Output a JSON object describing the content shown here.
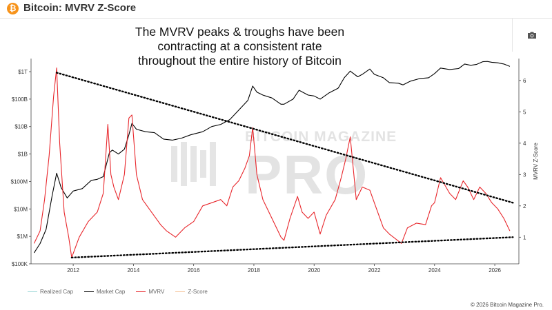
{
  "header": {
    "title": "Bitcoin: MVRV Z-Score",
    "logo_glyph": "₿"
  },
  "annotation": {
    "lines": [
      "The MVRV peaks & troughs have been",
      "contracting at a consistent rate",
      "throughout the entire history of Bitcoin"
    ]
  },
  "watermark": {
    "top": "BITCOIN MAGAZINE",
    "bottom": "PRO"
  },
  "legend": [
    {
      "label": "Realized Cap",
      "color": "#9fd9d9"
    },
    {
      "label": "Market Cap",
      "color": "#000000"
    },
    {
      "label": "MVRV",
      "color": "#e8262b"
    },
    {
      "label": "Z-Score",
      "color": "#f5c49a"
    }
  ],
  "copyright": "© 2026 Bitcoin Magazine Pro.",
  "icons": {
    "camera": "camera-icon",
    "logo": "bitcoin-logo-icon"
  },
  "chart_data": {
    "type": "line",
    "xlim": [
      2010.6,
      2026.8
    ],
    "x_ticks": [
      {
        "value": 2012,
        "label": "2012"
      },
      {
        "value": 2014,
        "label": "2014"
      },
      {
        "value": 2016,
        "label": "2016"
      },
      {
        "value": 2018,
        "label": "2018"
      },
      {
        "value": 2020,
        "label": "2020"
      },
      {
        "value": 2022,
        "label": "2022"
      },
      {
        "value": 2024,
        "label": "2024"
      },
      {
        "value": 2026,
        "label": "2026"
      }
    ],
    "left_axis": {
      "scale": "log",
      "unit": "USD",
      "range": [
        100000,
        3000000000000
      ],
      "ticks": [
        {
          "value": 100000,
          "label": "$100K"
        },
        {
          "value": 1000000,
          "label": "$1M"
        },
        {
          "value": 10000000,
          "label": "$10M"
        },
        {
          "value": 100000000,
          "label": "$100M"
        },
        {
          "value": 1000000000,
          "label": "$1B"
        },
        {
          "value": 10000000000,
          "label": "$10B"
        },
        {
          "value": 100000000000,
          "label": "$100B"
        },
        {
          "value": 1000000000000,
          "label": "$1T"
        }
      ]
    },
    "right_axis": {
      "label": "MVRV Z-Score",
      "range": [
        0.15,
        6.7
      ],
      "ticks": [
        {
          "value": 1,
          "label": "1"
        },
        {
          "value": 2,
          "label": "2"
        },
        {
          "value": 3,
          "label": "3"
        },
        {
          "value": 4,
          "label": "4"
        },
        {
          "value": 5,
          "label": "5"
        },
        {
          "value": 6,
          "label": "6"
        }
      ]
    },
    "series": [
      {
        "name": "Market Cap",
        "axis": "left",
        "color": "#000000",
        "x": [
          2010.7,
          2010.9,
          2011.1,
          2011.3,
          2011.45,
          2011.6,
          2011.8,
          2012.0,
          2012.3,
          2012.6,
          2012.8,
          2013.0,
          2013.2,
          2013.3,
          2013.5,
          2013.7,
          2013.85,
          2013.95,
          2014.1,
          2014.4,
          2014.7,
          2015.0,
          2015.3,
          2015.6,
          2015.9,
          2016.3,
          2016.6,
          2016.9,
          2017.2,
          2017.5,
          2017.8,
          2017.96,
          2018.1,
          2018.3,
          2018.6,
          2018.9,
          2019.0,
          2019.3,
          2019.5,
          2019.8,
          2020.0,
          2020.2,
          2020.5,
          2020.8,
          2021.0,
          2021.2,
          2021.45,
          2021.6,
          2021.85,
          2022.0,
          2022.3,
          2022.5,
          2022.8,
          2022.95,
          2023.2,
          2023.5,
          2023.8,
          2024.0,
          2024.2,
          2024.5,
          2024.8,
          2025.0,
          2025.2,
          2025.4,
          2025.6,
          2025.75,
          2025.9,
          2026.1,
          2026.3,
          2026.5
        ],
        "values": [
          250000,
          550000,
          1800000,
          30000000,
          200000000,
          60000000,
          25000000,
          45000000,
          55000000,
          110000000,
          120000000,
          150000000,
          1100000000,
          1400000000,
          1000000000,
          1500000000,
          5000000000,
          13000000000,
          8000000000,
          6500000000,
          6000000000,
          3500000000,
          3200000000,
          3800000000,
          5000000000,
          6500000000,
          10000000000,
          12000000000,
          18000000000,
          40000000000,
          90000000000,
          300000000000,
          180000000000,
          140000000000,
          110000000000,
          65000000000,
          65000000000,
          100000000000,
          210000000000,
          140000000000,
          130000000000,
          100000000000,
          170000000000,
          250000000000,
          600000000000,
          1050000000000,
          650000000000,
          800000000000,
          1250000000000,
          800000000000,
          600000000000,
          400000000000,
          380000000000,
          330000000000,
          450000000000,
          560000000000,
          600000000000,
          850000000000,
          1350000000000,
          1200000000000,
          1300000000000,
          1900000000000,
          1700000000000,
          1850000000000,
          2300000000000,
          2350000000000,
          2200000000000,
          2100000000000,
          1900000000000,
          1550000000000
        ]
      },
      {
        "name": "MVRV",
        "axis": "right",
        "color": "#e8262b",
        "x": [
          2010.7,
          2010.9,
          2011.05,
          2011.2,
          2011.35,
          2011.45,
          2011.55,
          2011.7,
          2011.85,
          2011.95,
          2012.2,
          2012.5,
          2012.8,
          2013.0,
          2013.15,
          2013.25,
          2013.35,
          2013.5,
          2013.7,
          2013.85,
          2013.95,
          2014.1,
          2014.3,
          2014.6,
          2014.9,
          2015.1,
          2015.4,
          2015.7,
          2016.0,
          2016.3,
          2016.6,
          2016.9,
          2017.1,
          2017.3,
          2017.5,
          2017.7,
          2017.85,
          2017.96,
          2018.1,
          2018.3,
          2018.6,
          2018.9,
          2019.0,
          2019.2,
          2019.45,
          2019.6,
          2019.8,
          2020.0,
          2020.2,
          2020.4,
          2020.7,
          2020.9,
          2021.05,
          2021.2,
          2021.4,
          2021.6,
          2021.85,
          2022.0,
          2022.3,
          2022.5,
          2022.7,
          2022.9,
          2023.1,
          2023.4,
          2023.7,
          2023.9,
          2024.0,
          2024.2,
          2024.5,
          2024.7,
          2024.95,
          2025.1,
          2025.3,
          2025.5,
          2025.7,
          2025.9,
          2026.1,
          2026.3,
          2026.5
        ],
        "values": [
          0.8,
          1.2,
          2.2,
          3.6,
          5.5,
          6.4,
          4.0,
          1.8,
          1.0,
          0.35,
          1.0,
          1.5,
          1.8,
          2.4,
          4.6,
          3.0,
          2.6,
          2.2,
          3.0,
          4.8,
          4.9,
          3.0,
          2.2,
          1.8,
          1.4,
          1.2,
          1.0,
          1.3,
          1.5,
          2.0,
          2.1,
          2.2,
          2.0,
          2.6,
          2.8,
          3.2,
          3.6,
          4.5,
          3.0,
          2.2,
          1.6,
          1.0,
          0.9,
          1.6,
          2.3,
          1.8,
          1.6,
          1.8,
          1.1,
          1.7,
          2.2,
          2.9,
          3.5,
          4.2,
          2.2,
          2.6,
          2.5,
          2.1,
          1.3,
          1.1,
          0.95,
          0.8,
          1.3,
          1.45,
          1.4,
          2.0,
          2.1,
          2.9,
          2.4,
          2.2,
          2.8,
          2.6,
          2.2,
          2.6,
          2.4,
          2.1,
          1.9,
          1.6,
          1.2
        ]
      },
      {
        "name": "Peak trend",
        "axis": "right",
        "color": "#000000",
        "style": "dotted",
        "x": [
          2011.45,
          2026.6
        ],
        "values": [
          6.25,
          2.1
        ]
      },
      {
        "name": "Trough trend",
        "axis": "right",
        "color": "#000000",
        "style": "dotted",
        "x": [
          2011.95,
          2026.6
        ],
        "values": [
          0.35,
          1.0
        ]
      }
    ],
    "grid": false,
    "legend_position": "bottom-left"
  }
}
